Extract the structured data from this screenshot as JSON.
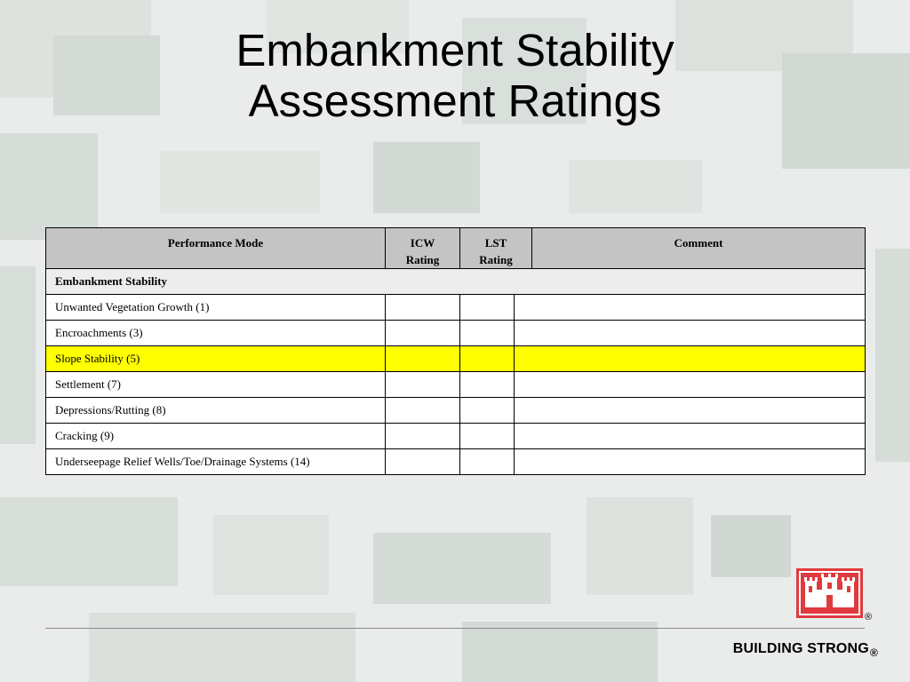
{
  "slide": {
    "title_line1": "Embankment Stability",
    "title_line2": "Assessment Ratings"
  },
  "table": {
    "headers": {
      "performance_mode": "Performance Mode",
      "icw": "ICW Rating",
      "lst": "LST Rating",
      "comment": "Comment"
    },
    "section_label": "Embankment Stability",
    "rows": [
      {
        "mode": "Unwanted Vegetation Growth (1)",
        "icw": "",
        "lst": "",
        "comment": "",
        "highlighted": false
      },
      {
        "mode": "Encroachments (3)",
        "icw": "",
        "lst": "",
        "comment": "",
        "highlighted": false
      },
      {
        "mode": "Slope Stability (5)",
        "icw": "",
        "lst": "",
        "comment": "",
        "highlighted": true
      },
      {
        "mode": "Settlement (7)",
        "icw": "",
        "lst": "",
        "comment": "",
        "highlighted": false
      },
      {
        "mode": "Depressions/Rutting (8)",
        "icw": "",
        "lst": "",
        "comment": "",
        "highlighted": false
      },
      {
        "mode": "Cracking (9)",
        "icw": "",
        "lst": "",
        "comment": "",
        "highlighted": false
      },
      {
        "mode": "Underseepage Relief Wells/Toe/Drainage Systems (14)",
        "icw": "",
        "lst": "",
        "comment": "",
        "highlighted": false
      }
    ],
    "colors": {
      "header_bg": "#c4c4c4",
      "section_bg": "#ededed",
      "highlight_bg": "#ffff00"
    }
  },
  "footer": {
    "tagline": "BUILDING STRONG",
    "registered_mark": "®",
    "logo_icon": "castle-logo-icon",
    "logo_color": "#e03a3e"
  }
}
